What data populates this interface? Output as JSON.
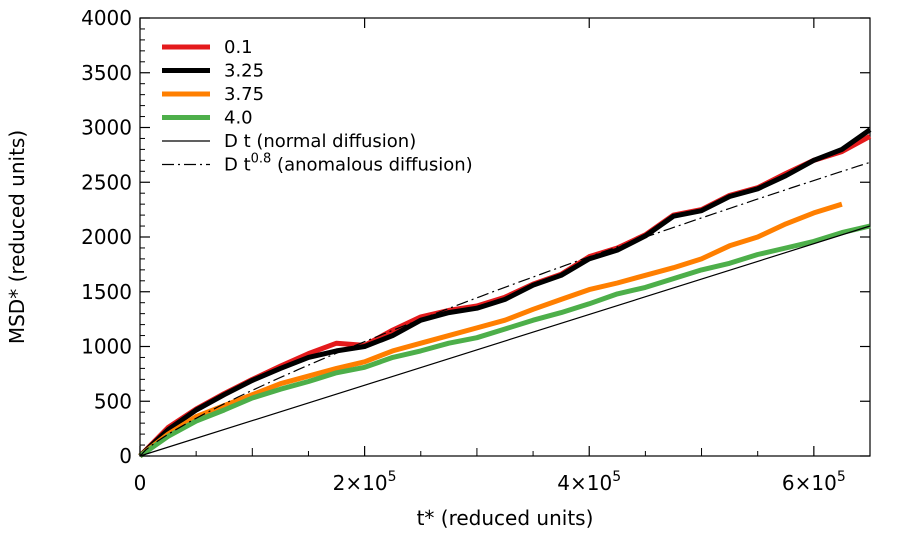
{
  "chart_data": {
    "type": "line",
    "title": "",
    "xlabel": "t* (reduced units)",
    "ylabel": "MSD*  (reduced units)",
    "xlim": [
      0,
      650000
    ],
    "ylim": [
      0,
      4000
    ],
    "grid": false,
    "legend_position": "top-left",
    "x_ticks": [
      {
        "value": 0,
        "mantissa": "0",
        "exponent": ""
      },
      {
        "value": 200000,
        "mantissa": "2×10",
        "exponent": "5"
      },
      {
        "value": 400000,
        "mantissa": "4×10",
        "exponent": "5"
      },
      {
        "value": 600000,
        "mantissa": "6×10",
        "exponent": "5"
      }
    ],
    "y_ticks": [
      0,
      500,
      1000,
      1500,
      2000,
      2500,
      3000,
      3500,
      4000
    ],
    "series": [
      {
        "name": "0.1",
        "color": "#e41a1c",
        "style": "solid",
        "width": 5,
        "x": [
          0,
          25000,
          50000,
          75000,
          100000,
          125000,
          150000,
          175000,
          200000,
          225000,
          250000,
          275000,
          300000,
          325000,
          350000,
          375000,
          400000,
          425000,
          450000,
          475000,
          500000,
          525000,
          550000,
          575000,
          600000,
          625000,
          650000
        ],
        "y": [
          0,
          260,
          430,
          570,
          700,
          820,
          935,
          1030,
          1010,
          1150,
          1270,
          1330,
          1370,
          1450,
          1570,
          1660,
          1820,
          1900,
          2020,
          2200,
          2250,
          2380,
          2450,
          2580,
          2700,
          2780,
          2920
        ]
      },
      {
        "name": "3.25",
        "color": "#000000",
        "style": "solid",
        "width": 5,
        "x": [
          0,
          25000,
          50000,
          75000,
          100000,
          125000,
          150000,
          175000,
          200000,
          225000,
          250000,
          275000,
          300000,
          325000,
          350000,
          375000,
          400000,
          425000,
          450000,
          475000,
          500000,
          525000,
          550000,
          575000,
          600000,
          625000,
          650000
        ],
        "y": [
          0,
          240,
          420,
          560,
          690,
          800,
          900,
          960,
          1000,
          1100,
          1240,
          1310,
          1350,
          1430,
          1560,
          1650,
          1800,
          1880,
          2010,
          2190,
          2240,
          2370,
          2440,
          2560,
          2700,
          2800,
          2980
        ]
      },
      {
        "name": "3.75",
        "color": "#ff7f00",
        "style": "solid",
        "width": 5,
        "x": [
          0,
          25000,
          50000,
          75000,
          100000,
          125000,
          150000,
          175000,
          200000,
          225000,
          250000,
          275000,
          300000,
          325000,
          350000,
          375000,
          400000,
          425000,
          450000,
          475000,
          500000,
          525000,
          550000,
          575000,
          600000,
          625000
        ],
        "y": [
          0,
          200,
          360,
          460,
          560,
          660,
          730,
          800,
          860,
          960,
          1030,
          1100,
          1170,
          1240,
          1340,
          1430,
          1520,
          1580,
          1650,
          1720,
          1800,
          1920,
          2000,
          2120,
          2220,
          2300
        ]
      },
      {
        "name": "4.0",
        "color": "#4daf4a",
        "style": "solid",
        "width": 5,
        "x": [
          0,
          25000,
          50000,
          75000,
          100000,
          125000,
          150000,
          175000,
          200000,
          225000,
          250000,
          275000,
          300000,
          325000,
          350000,
          375000,
          400000,
          425000,
          450000,
          475000,
          500000,
          525000,
          550000,
          575000,
          600000,
          625000,
          650000
        ],
        "y": [
          0,
          180,
          320,
          420,
          530,
          610,
          680,
          760,
          810,
          900,
          960,
          1030,
          1080,
          1160,
          1240,
          1310,
          1390,
          1480,
          1540,
          1620,
          1700,
          1760,
          1840,
          1900,
          1960,
          2040,
          2100
        ]
      },
      {
        "name": "D t (normal diffusion)",
        "color": "#000000",
        "style": "solid",
        "width": 1.2,
        "x": [
          0,
          650000
        ],
        "y": [
          0,
          2100
        ]
      },
      {
        "name_prefix": "D t",
        "name_sup": "0.8",
        "name_suffix": " (anomalous diffusion)",
        "color": "#000000",
        "style": "dashdot",
        "width": 1.2,
        "function": "power",
        "coefficient": 0.06,
        "exponent": 0.8,
        "x_range": [
          0,
          650000
        ]
      }
    ]
  }
}
